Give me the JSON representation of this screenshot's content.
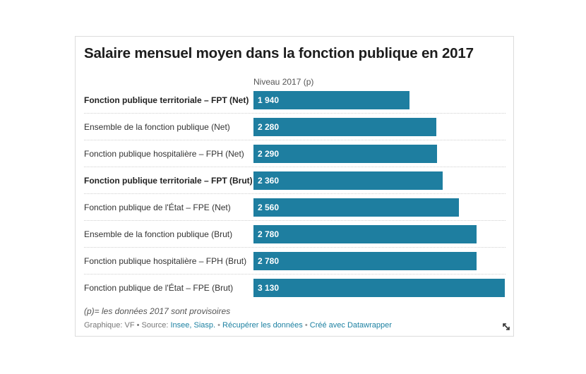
{
  "title": "Salaire mensuel moyen dans la fonction publique en 2017",
  "column_header": "Niveau 2017 (p)",
  "note": "(p)= les données 2017 sont provisoires",
  "footer": {
    "prefix": "Graphique: VF • Source: ",
    "source_link": "Insee, Siasp.",
    "sep": " • ",
    "download_link": "Récupérer les données",
    "made_with": "Créé avec Datawrapper"
  },
  "colors": {
    "bar": "#1e7ea0"
  },
  "icons": {
    "resize": "resize-arrows-icon"
  },
  "chart_data": {
    "type": "bar",
    "orientation": "horizontal",
    "title": "Salaire mensuel moyen dans la fonction publique en 2017",
    "xlabel": "Niveau 2017 (p)",
    "ylabel": "",
    "xlim": [
      0,
      3130
    ],
    "categories": [
      "Fonction publique territoriale – FPT (Net)",
      "Ensemble de la fonction publique (Net)",
      "Fonction publique hospitalière – FPH (Net)",
      "Fonction publique territoriale – FPT (Brut)",
      "Fonction publique de l'État – FPE (Net)",
      "Ensemble de la fonction publique (Brut)",
      "Fonction publique hospitalière – FPH (Brut)",
      "Fonction publique de l'État – FPE (Brut)"
    ],
    "values": [
      1940,
      2280,
      2290,
      2360,
      2560,
      2780,
      2780,
      3130
    ],
    "value_labels": [
      "1 940",
      "2 280",
      "2 290",
      "2 360",
      "2 560",
      "2 780",
      "2 780",
      "3 130"
    ],
    "bold": [
      true,
      false,
      false,
      true,
      false,
      false,
      false,
      false
    ]
  }
}
